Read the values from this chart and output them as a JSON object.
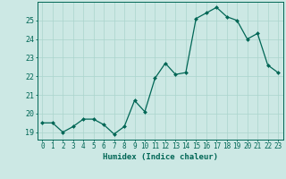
{
  "x": [
    0,
    1,
    2,
    3,
    4,
    5,
    6,
    7,
    8,
    9,
    10,
    11,
    12,
    13,
    14,
    15,
    16,
    17,
    18,
    19,
    20,
    21,
    22,
    23
  ],
  "y": [
    19.5,
    19.5,
    19.0,
    19.3,
    19.7,
    19.7,
    19.4,
    18.9,
    19.3,
    20.7,
    20.1,
    21.9,
    22.7,
    22.1,
    22.2,
    25.1,
    25.4,
    25.7,
    25.2,
    25.0,
    24.0,
    24.3,
    22.6,
    22.2
  ],
  "xlabel": "Humidex (Indice chaleur)",
  "bg_color": "#cce8e4",
  "line_color": "#006655",
  "marker_color": "#006655",
  "grid_color": "#aad4cc",
  "tick_color": "#006655",
  "spine_color": "#006655",
  "ylim": [
    18.6,
    26.0
  ],
  "xlim": [
    -0.5,
    23.5
  ],
  "yticks": [
    19,
    20,
    21,
    22,
    23,
    24,
    25
  ],
  "xticks": [
    0,
    1,
    2,
    3,
    4,
    5,
    6,
    7,
    8,
    9,
    10,
    11,
    12,
    13,
    14,
    15,
    16,
    17,
    18,
    19,
    20,
    21,
    22,
    23
  ],
  "xlabel_fontsize": 6.5,
  "tick_fontsize": 5.5,
  "ytick_fontsize": 6.0
}
